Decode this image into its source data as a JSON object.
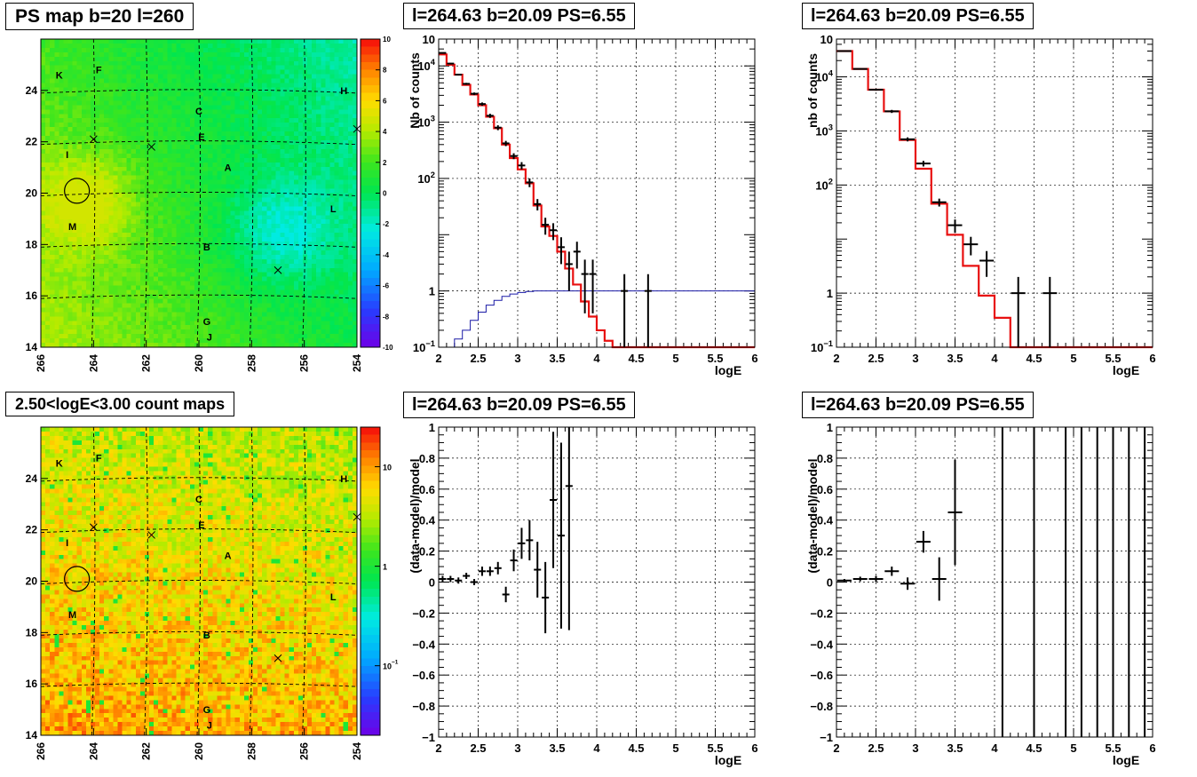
{
  "chart_data": [
    {
      "type": "heatmap",
      "title": "PS map b=20 l=260",
      "x_ticks": [
        "266",
        "264",
        "262",
        "260",
        "258",
        "256",
        "254"
      ],
      "xlim": [
        266,
        254
      ],
      "y_ticks": [
        "14",
        "16",
        "18",
        "20",
        "22",
        "24"
      ],
      "ylim": [
        14,
        26
      ],
      "colorbar_ticks": [
        "10",
        "8",
        "6",
        "4",
        "2",
        "0",
        "-2",
        "-4",
        "-6",
        "-8",
        "-10"
      ],
      "zlim": [
        -10,
        10
      ],
      "sources": [
        {
          "name": "K",
          "l": 265.3,
          "b": 24.6
        },
        {
          "name": "F",
          "l": 263.8,
          "b": 24.8
        },
        {
          "name": "C",
          "l": 260.0,
          "b": 23.2
        },
        {
          "name": "E",
          "l": 259.9,
          "b": 22.2
        },
        {
          "name": "A",
          "l": 258.9,
          "b": 21.0
        },
        {
          "name": "H",
          "l": 254.5,
          "b": 24.0
        },
        {
          "name": "I",
          "l": 265.0,
          "b": 21.5
        },
        {
          "name": "M",
          "l": 264.8,
          "b": 18.7
        },
        {
          "name": "B",
          "l": 259.7,
          "b": 17.9
        },
        {
          "name": "L",
          "l": 254.9,
          "b": 19.4
        },
        {
          "name": "G",
          "l": 259.7,
          "b": 15.0
        },
        {
          "name": "J",
          "l": 259.6,
          "b": 14.4
        }
      ],
      "crosses": [
        {
          "l": 264.0,
          "b": 22.1
        },
        {
          "l": 261.8,
          "b": 21.8
        },
        {
          "l": 257.0,
          "b": 17.0
        },
        {
          "l": 254.0,
          "b": 22.5
        }
      ],
      "circle": {
        "l": 264.63,
        "b": 20.09
      }
    },
    {
      "type": "line",
      "title": "l=264.63 b=20.09 PS=6.55",
      "xlabel": "logE",
      "ylabel": "Nb of counts",
      "xlim": [
        2,
        6
      ],
      "ylim": [
        0.1,
        30000
      ],
      "yscale": "log",
      "x_ticks": [
        "2",
        "2.5",
        "3",
        "3.5",
        "4",
        "4.5",
        "5",
        "5.5",
        "6"
      ],
      "y_ticks": [
        "10^-1",
        "1",
        "10",
        "10^2",
        "10^3",
        "10^4"
      ],
      "grid": true,
      "data": [
        {
          "x": 2.05,
          "y": 17000,
          "err": 400
        },
        {
          "x": 2.15,
          "y": 11000,
          "err": 300
        },
        {
          "x": 2.25,
          "y": 7000,
          "err": 250
        },
        {
          "x": 2.35,
          "y": 4800,
          "err": 200
        },
        {
          "x": 2.45,
          "y": 3200,
          "err": 170
        },
        {
          "x": 2.55,
          "y": 2100,
          "err": 140
        },
        {
          "x": 2.65,
          "y": 1300,
          "err": 110
        },
        {
          "x": 2.75,
          "y": 800,
          "err": 80
        },
        {
          "x": 2.85,
          "y": 420,
          "err": 45
        },
        {
          "x": 2.95,
          "y": 250,
          "err": 30
        },
        {
          "x": 3.05,
          "y": 170,
          "err": 25
        },
        {
          "x": 3.15,
          "y": 85,
          "err": 15
        },
        {
          "x": 3.25,
          "y": 35,
          "err": 8
        },
        {
          "x": 3.35,
          "y": 15,
          "err": 5
        },
        {
          "x": 3.45,
          "y": 12,
          "err": 4
        },
        {
          "x": 3.55,
          "y": 6,
          "err": 3
        },
        {
          "x": 3.65,
          "y": 3,
          "err": 2
        },
        {
          "x": 3.75,
          "y": 5,
          "err": 2.5
        },
        {
          "x": 3.85,
          "y": 2,
          "err": 1.6
        },
        {
          "x": 3.95,
          "y": 2,
          "err": 1.6
        },
        {
          "x": 4.35,
          "y": 1,
          "err": 0.99
        },
        {
          "x": 4.65,
          "y": 1,
          "err": 0.99
        }
      ],
      "model": {
        "edges": [
          2.0,
          2.1,
          2.2,
          2.3,
          2.4,
          2.5,
          2.6,
          2.7,
          2.8,
          2.9,
          3.0,
          3.1,
          3.2,
          3.3,
          3.4,
          3.5,
          3.6,
          3.7,
          3.8,
          3.9,
          4.0,
          4.1,
          4.2,
          4.3,
          6.0
        ],
        "values": [
          16000,
          10500,
          7000,
          4600,
          3100,
          2000,
          1250,
          780,
          400,
          230,
          145,
          82,
          33,
          14,
          9.5,
          5,
          2.5,
          1.3,
          0.65,
          0.35,
          0.2,
          0.13,
          0.1,
          0.1
        ]
      },
      "background": {
        "edges": [
          2.0,
          2.1,
          2.2,
          2.3,
          2.4,
          2.5,
          2.6,
          2.7,
          2.8,
          2.9,
          3.0,
          3.1,
          3.2,
          3.3,
          3.4,
          3.5,
          3.6,
          3.7,
          3.8,
          3.9,
          4.0,
          6.0
        ],
        "values": [
          0.05,
          0.1,
          0.14,
          0.2,
          0.3,
          0.42,
          0.56,
          0.68,
          0.8,
          0.88,
          0.94,
          0.98,
          1.0,
          1.0,
          1.0,
          1.0,
          1.0,
          1.0,
          1.0,
          1.0,
          1.0
        ]
      }
    },
    {
      "type": "line",
      "title": "l=264.63 b=20.09 PS=6.55",
      "xlabel": "logE",
      "ylabel": "nb of counts",
      "xlim": [
        2,
        6
      ],
      "ylim": [
        0.1,
        50000
      ],
      "yscale": "log",
      "x_ticks": [
        "2",
        "2.5",
        "3",
        "3.5",
        "4",
        "4.5",
        "5",
        "5.5",
        "6"
      ],
      "y_ticks": [
        "10^-1",
        "1",
        "10",
        "10^2",
        "10^3",
        "10^4"
      ],
      "grid": true,
      "data": [
        {
          "x": 2.1,
          "y": 30000,
          "err": 600
        },
        {
          "x": 2.3,
          "y": 14000,
          "err": 400
        },
        {
          "x": 2.5,
          "y": 5800,
          "err": 250
        },
        {
          "x": 2.7,
          "y": 2300,
          "err": 150
        },
        {
          "x": 2.9,
          "y": 700,
          "err": 60
        },
        {
          "x": 3.1,
          "y": 250,
          "err": 30
        },
        {
          "x": 3.3,
          "y": 48,
          "err": 8
        },
        {
          "x": 3.5,
          "y": 18,
          "err": 5
        },
        {
          "x": 3.7,
          "y": 8,
          "err": 3
        },
        {
          "x": 3.9,
          "y": 4,
          "err": 2
        },
        {
          "x": 4.3,
          "y": 1,
          "err": 0.99
        },
        {
          "x": 4.7,
          "y": 1,
          "err": 0.99
        }
      ],
      "model": {
        "edges": [
          2.0,
          2.2,
          2.4,
          2.6,
          2.8,
          3.0,
          3.2,
          3.4,
          3.6,
          3.8,
          4.0,
          4.2,
          6.0
        ],
        "values": [
          30000,
          14000,
          5800,
          2300,
          680,
          200,
          45,
          12,
          3.2,
          0.9,
          0.35,
          0.1
        ]
      }
    },
    {
      "type": "heatmap",
      "title": "2.50<logE<3.00 count maps",
      "x_ticks": [
        "266",
        "264",
        "262",
        "260",
        "258",
        "256",
        "254"
      ],
      "xlim": [
        266,
        254
      ],
      "y_ticks": [
        "14",
        "16",
        "18",
        "20",
        "22",
        "24"
      ],
      "ylim": [
        14,
        26
      ],
      "colorbar_ticks": [
        "10",
        "1",
        "10^-1"
      ],
      "zscale": "log",
      "sources": [
        {
          "name": "K",
          "l": 265.3,
          "b": 24.6
        },
        {
          "name": "F",
          "l": 263.8,
          "b": 24.8
        },
        {
          "name": "C",
          "l": 260.0,
          "b": 23.2
        },
        {
          "name": "E",
          "l": 259.9,
          "b": 22.2
        },
        {
          "name": "A",
          "l": 258.9,
          "b": 21.0
        },
        {
          "name": "H",
          "l": 254.5,
          "b": 24.0
        },
        {
          "name": "I",
          "l": 265.0,
          "b": 21.5
        },
        {
          "name": "M",
          "l": 264.8,
          "b": 18.7
        },
        {
          "name": "B",
          "l": 259.7,
          "b": 17.9
        },
        {
          "name": "L",
          "l": 254.9,
          "b": 19.4
        },
        {
          "name": "G",
          "l": 259.7,
          "b": 15.0
        },
        {
          "name": "J",
          "l": 259.6,
          "b": 14.4
        }
      ],
      "crosses": [
        {
          "l": 264.0,
          "b": 22.1
        },
        {
          "l": 261.8,
          "b": 21.8
        },
        {
          "l": 257.0,
          "b": 17.0
        },
        {
          "l": 254.0,
          "b": 22.5
        }
      ],
      "circle": {
        "l": 264.63,
        "b": 20.09
      }
    },
    {
      "type": "scatter",
      "title": "l=264.63 b=20.09 PS=6.55",
      "xlabel": "logE",
      "ylabel": "(data-model)/model",
      "xlim": [
        2,
        6
      ],
      "ylim": [
        -1,
        1
      ],
      "x_ticks": [
        "2",
        "2.5",
        "3",
        "3.5",
        "4",
        "4.5",
        "5",
        "5.5",
        "6"
      ],
      "y_ticks": [
        "−1",
        "−0.8",
        "−0.6",
        "−0.4",
        "−0.2",
        "0",
        "0.2",
        "0.4",
        "0.6",
        "0.8",
        "1"
      ],
      "grid": true,
      "data": [
        {
          "x": 2.05,
          "y": 0.02,
          "err": 0.02
        },
        {
          "x": 2.15,
          "y": 0.02,
          "err": 0.02
        },
        {
          "x": 2.25,
          "y": 0.01,
          "err": 0.02
        },
        {
          "x": 2.35,
          "y": 0.04,
          "err": 0.02
        },
        {
          "x": 2.45,
          "y": 0.0,
          "err": 0.02
        },
        {
          "x": 2.55,
          "y": 0.07,
          "err": 0.03
        },
        {
          "x": 2.65,
          "y": 0.07,
          "err": 0.03
        },
        {
          "x": 2.75,
          "y": 0.09,
          "err": 0.04
        },
        {
          "x": 2.85,
          "y": -0.08,
          "err": 0.05
        },
        {
          "x": 2.95,
          "y": 0.14,
          "err": 0.07
        },
        {
          "x": 3.05,
          "y": 0.25,
          "err": 0.1
        },
        {
          "x": 3.15,
          "y": 0.27,
          "err": 0.13
        },
        {
          "x": 3.25,
          "y": 0.08,
          "err": 0.18
        },
        {
          "x": 3.35,
          "y": -0.1,
          "err": 0.23
        },
        {
          "x": 3.45,
          "y": 0.53,
          "err": 0.44
        },
        {
          "x": 3.55,
          "y": 0.3,
          "err": 0.6
        },
        {
          "x": 3.65,
          "y": 0.62,
          "err": 0.93
        }
      ]
    },
    {
      "type": "scatter",
      "title": "l=264.63 b=20.09 PS=6.55",
      "xlabel": "logE",
      "ylabel": "(data-model)/model",
      "xlim": [
        2,
        6
      ],
      "ylim": [
        -1,
        1
      ],
      "x_ticks": [
        "2",
        "2.5",
        "3",
        "3.5",
        "4",
        "4.5",
        "5",
        "5.5",
        "6"
      ],
      "y_ticks": [
        "−1",
        "−0.8",
        "−0.6",
        "−0.4",
        "−0.2",
        "0",
        "0.2",
        "0.4",
        "0.6",
        "0.8",
        "1"
      ],
      "grid": true,
      "data": [
        {
          "x": 2.1,
          "y": 0.01,
          "err": 0.01
        },
        {
          "x": 2.3,
          "y": 0.02,
          "err": 0.015
        },
        {
          "x": 2.5,
          "y": 0.02,
          "err": 0.02
        },
        {
          "x": 2.7,
          "y": 0.07,
          "err": 0.03
        },
        {
          "x": 2.9,
          "y": -0.01,
          "err": 0.04
        },
        {
          "x": 3.1,
          "y": 0.26,
          "err": 0.07
        },
        {
          "x": 3.3,
          "y": 0.02,
          "err": 0.14
        },
        {
          "x": 3.5,
          "y": 0.45,
          "err": 0.34
        }
      ],
      "full_lines_x": [
        4.1,
        4.5,
        4.9,
        5.1,
        5.3,
        5.5,
        5.7,
        5.9
      ]
    }
  ]
}
